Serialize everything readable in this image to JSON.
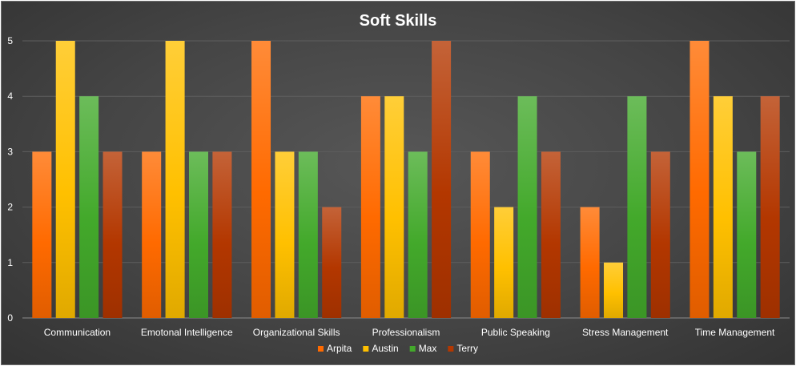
{
  "chart_data": {
    "type": "bar",
    "title": "Soft Skills",
    "xlabel": "",
    "ylabel": "",
    "categories": [
      "Communication",
      "Emotonal Intelligence",
      "Organizational Skills",
      "Professionalism",
      "Public Speaking",
      "Stress Management",
      "Time Management"
    ],
    "series": [
      {
        "name": "Arpita",
        "values": [
          3,
          3,
          5,
          4,
          3,
          2,
          5
        ],
        "color": "#ff6a00"
      },
      {
        "name": "Austin",
        "values": [
          5,
          5,
          3,
          4,
          2,
          1,
          4
        ],
        "color": "#ffc000"
      },
      {
        "name": "Max",
        "values": [
          4,
          3,
          3,
          3,
          4,
          4,
          3
        ],
        "color": "#43a92b"
      },
      {
        "name": "Terry",
        "values": [
          3,
          3,
          2,
          5,
          3,
          3,
          4
        ],
        "color": "#b33700"
      }
    ],
    "ylim": [
      0,
      5
    ],
    "yticks": [
      "0",
      "1",
      "2",
      "3",
      "4",
      "5"
    ],
    "grid": true,
    "legend": "bottom"
  }
}
